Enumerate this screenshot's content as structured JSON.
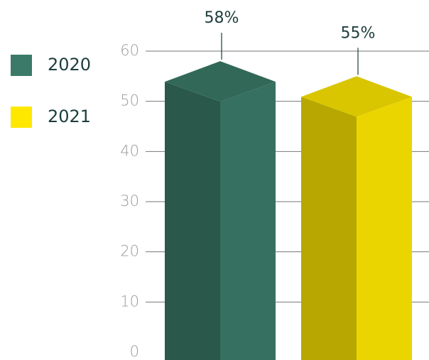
{
  "chart_data": {
    "type": "bar3d",
    "categories": [
      null
    ],
    "series": [
      {
        "name": "2020",
        "color": "#3b7a68",
        "values": [
          58
        ],
        "value_labels": [
          "58%"
        ]
      },
      {
        "name": "2021",
        "color": "#ffe800",
        "values": [
          55
        ],
        "value_labels": [
          "55%"
        ]
      }
    ],
    "ylim": [
      0,
      60
    ],
    "yticks": [
      0,
      10,
      20,
      30,
      40,
      50,
      60
    ],
    "grid": true,
    "legend": "left"
  }
}
